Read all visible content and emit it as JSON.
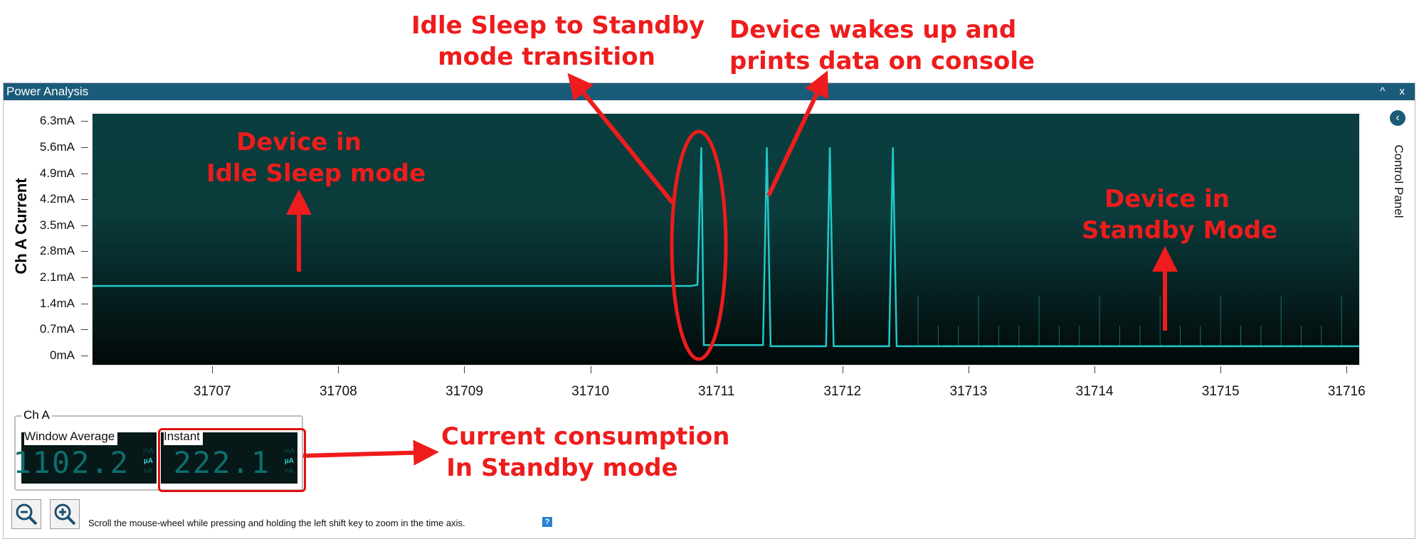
{
  "window": {
    "title": "Power Analysis",
    "controls": "^ x"
  },
  "chart_data": {
    "type": "line",
    "ylabel": "Ch A Current",
    "y_ticks": [
      "6.3mA",
      "5.6mA",
      "4.9mA",
      "4.2mA",
      "3.5mA",
      "2.8mA",
      "2.1mA",
      "1.4mA",
      "0.7mA",
      "0mA"
    ],
    "x_ticks": [
      "31707",
      "31708",
      "31709",
      "31710",
      "31711",
      "31712",
      "31713",
      "31714",
      "31715",
      "31716"
    ],
    "xlim": [
      31706.05,
      31716.1
    ],
    "ylim": [
      -0.25,
      6.5
    ],
    "series": [
      {
        "x": [
          31706.05,
          31710.8,
          31710.85,
          31710.88,
          31710.9,
          31710.93,
          31711.3,
          31711.37,
          31711.4,
          31711.43,
          31711.8,
          31711.87,
          31711.9,
          31711.93,
          31712.3,
          31712.37,
          31712.4,
          31712.43,
          31716.1
        ],
        "y": [
          1.87,
          1.87,
          1.9,
          5.6,
          0.28,
          0.28,
          0.28,
          0.28,
          5.6,
          0.25,
          0.25,
          0.25,
          5.6,
          0.25,
          0.25,
          0.25,
          5.6,
          0.25,
          0.25
        ]
      }
    ]
  },
  "control_panel": {
    "label": "Control Panel",
    "icon": "chevron-left-icon"
  },
  "channel": {
    "legend": "Ch A",
    "window_average": {
      "label": "Window Average",
      "value": "1102.2",
      "units": [
        "mA",
        "µA",
        "nA"
      ]
    },
    "instant": {
      "label": "Instant",
      "value": "222.1",
      "units": [
        "mA",
        "µA",
        "nA"
      ]
    }
  },
  "toolbar": {
    "zoom_out": "zoom-out-icon",
    "zoom_in": "zoom-in-icon",
    "hint": "Scroll the mouse-wheel while pressing and holding the left shift key to zoom in the time axis."
  },
  "annotations": {
    "transition": [
      "Idle Sleep to Standby",
      "mode transition"
    ],
    "wake": [
      "Device wakes up and",
      "prints data on console"
    ],
    "idle_sleep": [
      "Device in",
      "Idle Sleep mode"
    ],
    "standby": [
      "Device in",
      "Standby Mode"
    ],
    "current": [
      "Current consumption",
      "In Standby mode"
    ]
  },
  "colors": {
    "annotation": "#ee1c1c",
    "trace": "#22c8c8",
    "titlebar": "#1b5b7a"
  }
}
